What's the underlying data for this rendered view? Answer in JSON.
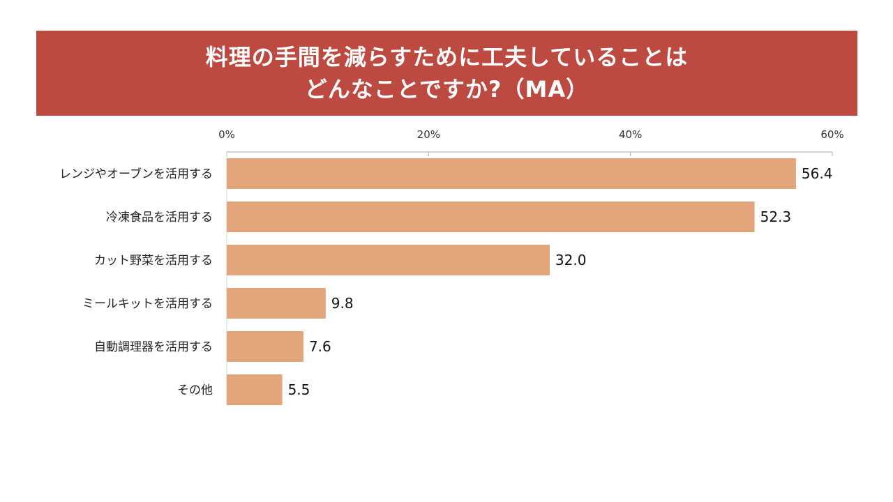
{
  "title": {
    "line1": "料理の手間を減らすために工夫していることは",
    "line2": "どんなことですか?（MA）"
  },
  "colors": {
    "banner": "#bd4a40",
    "bar": "#e3a67c",
    "title_text": "#ffffff",
    "axis": "#aaaaaa"
  },
  "chart_data": {
    "type": "bar",
    "orientation": "horizontal",
    "categories": [
      "レンジやオーブンを活用する",
      "冷凍食品を活用する",
      "カット野菜を活用する",
      "ミールキットを活用する",
      "自動調理器を活用する",
      "その他"
    ],
    "values": [
      56.4,
      52.3,
      32.0,
      9.8,
      7.6,
      5.5
    ],
    "value_labels": [
      "56.4",
      "52.3",
      "32.0",
      "9.8",
      "7.6",
      "5.5"
    ],
    "xlim": [
      0,
      60
    ],
    "x_ticks": [
      0,
      20,
      40,
      60
    ],
    "x_tick_labels": [
      "0%",
      "20%",
      "40%",
      "60%"
    ],
    "x_axis_position": "top",
    "grid": false,
    "legend": "none"
  }
}
